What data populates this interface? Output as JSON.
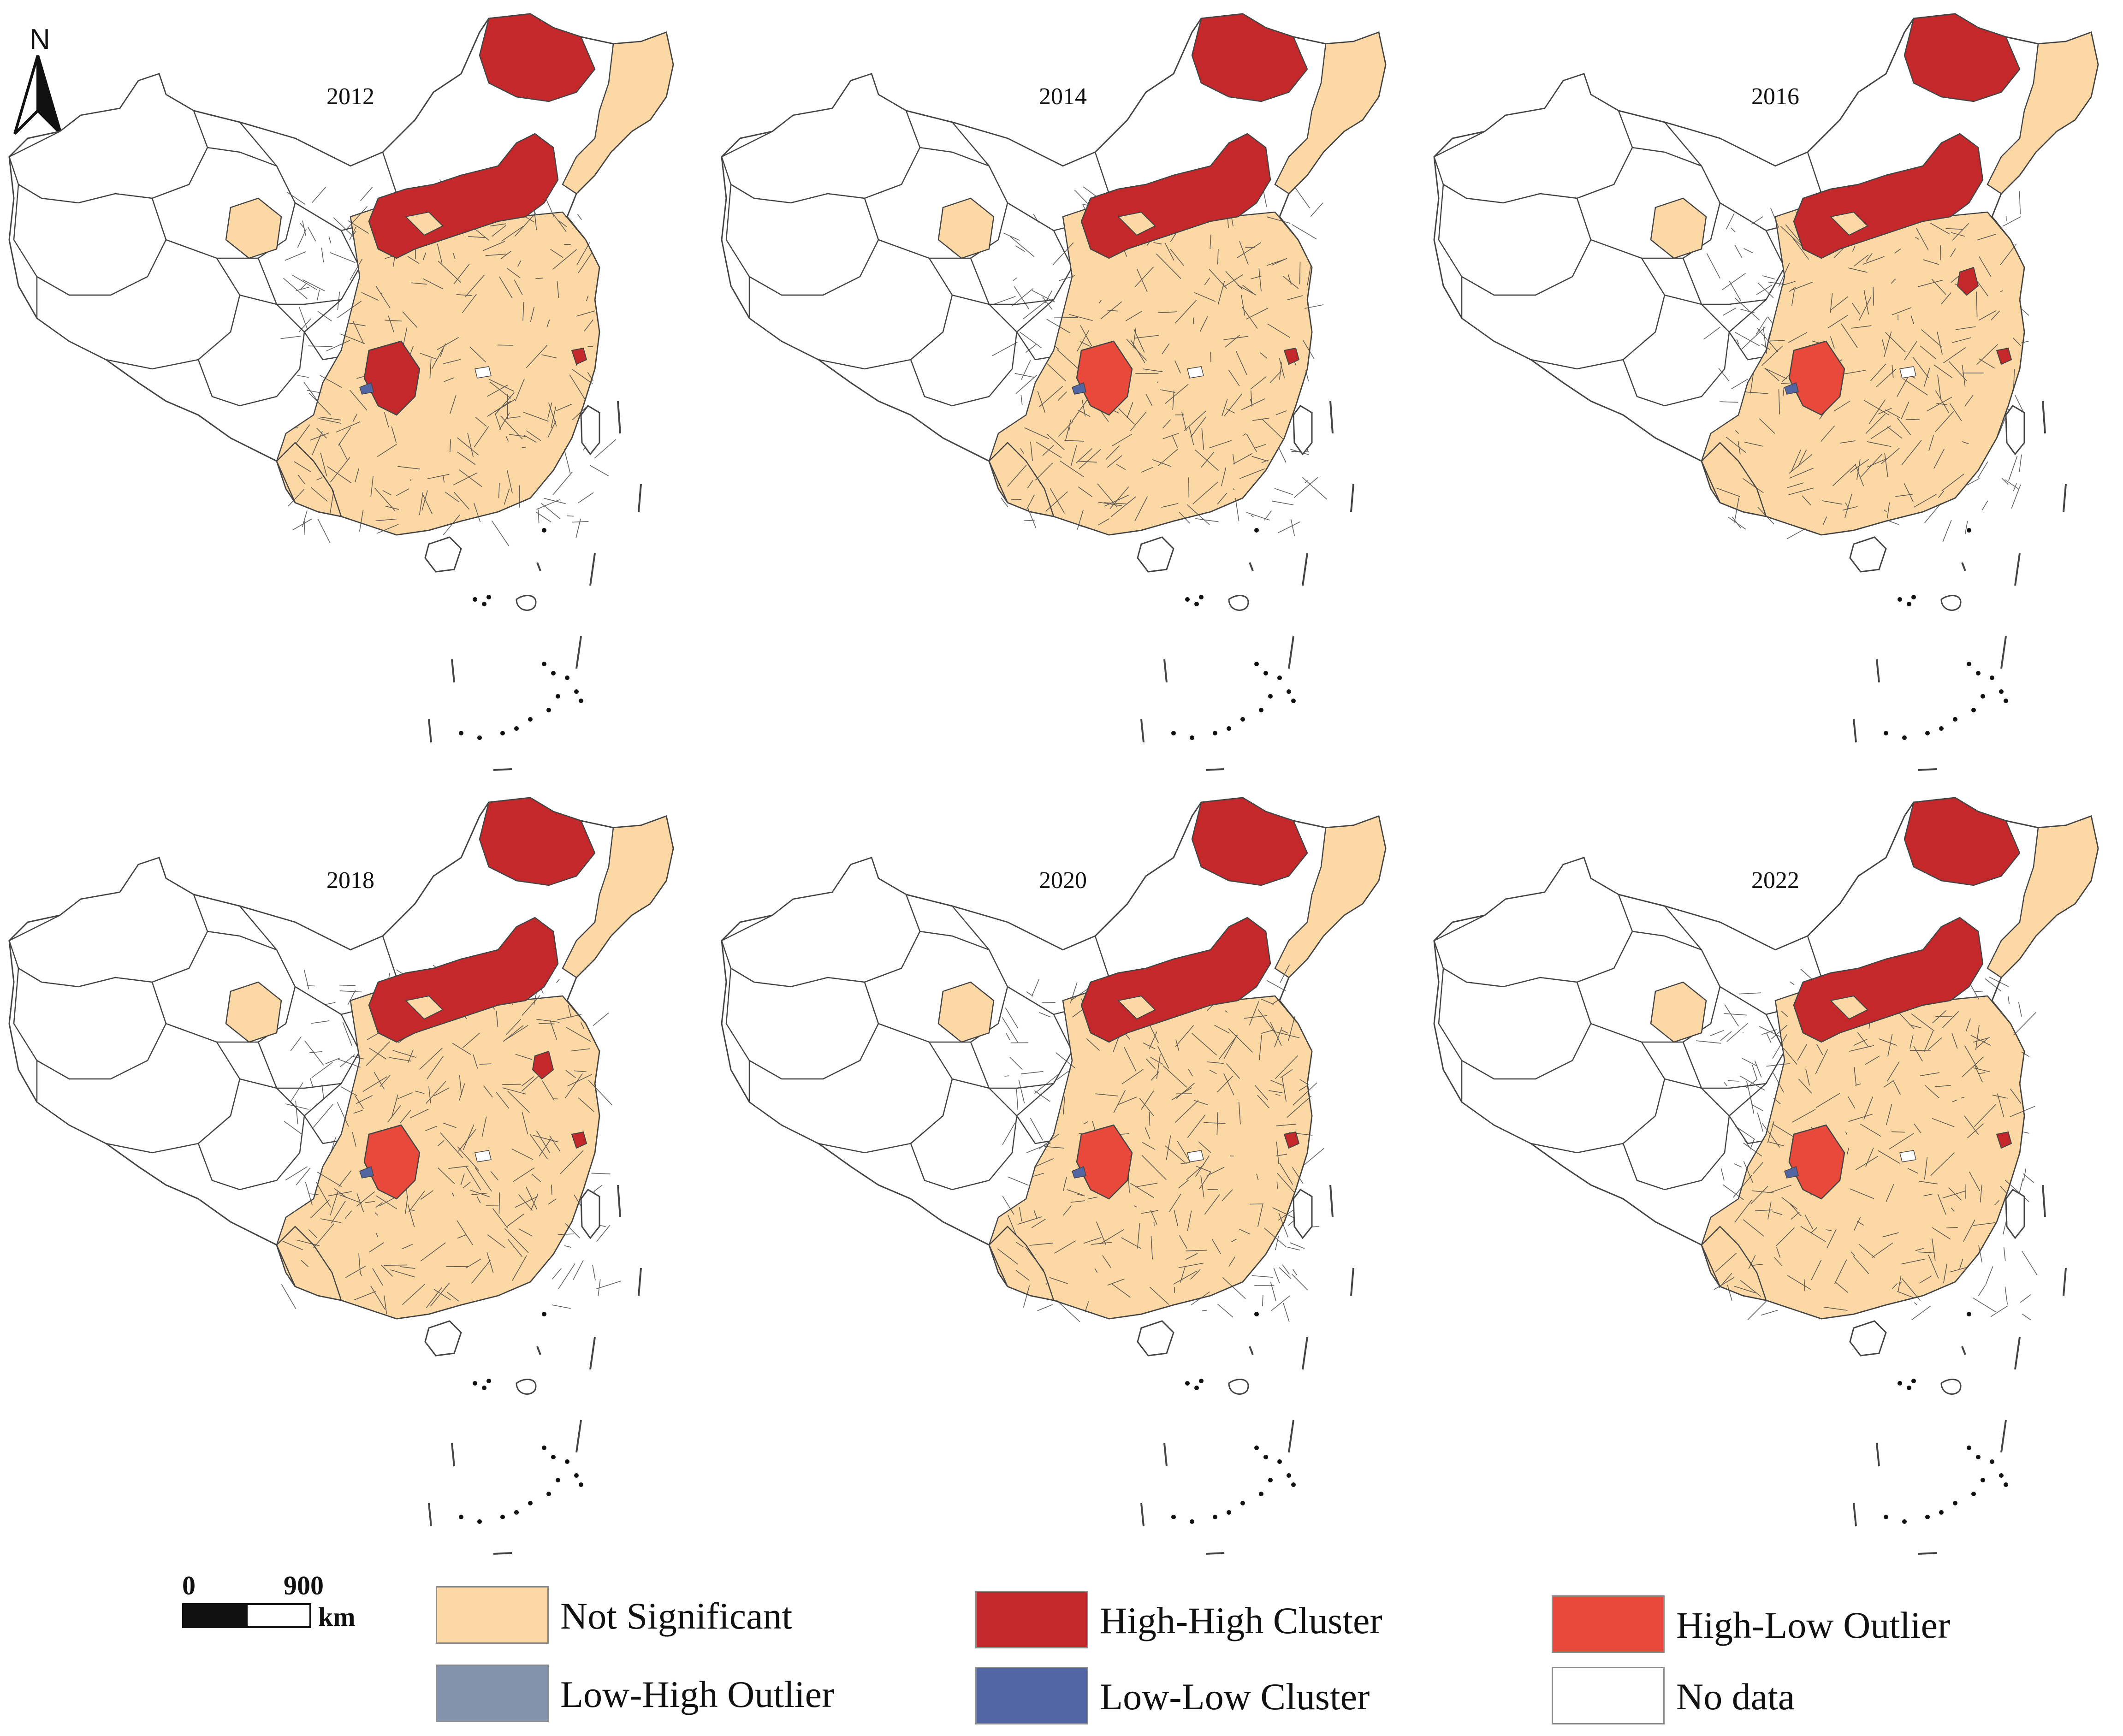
{
  "north_label": "N",
  "panels": [
    {
      "year": "2012"
    },
    {
      "year": "2014"
    },
    {
      "year": "2016"
    },
    {
      "year": "2018"
    },
    {
      "year": "2020"
    },
    {
      "year": "2022"
    }
  ],
  "scale": {
    "start": "0",
    "end": "900",
    "unit": "km"
  },
  "legend": [
    {
      "label": "Not Significant",
      "color": "#fcd8a4"
    },
    {
      "label": "High-High Cluster",
      "color": "#c4282a"
    },
    {
      "label": "High-Low Outlier",
      "color": "#e8493a"
    },
    {
      "label": "Low-High Outlier",
      "color": "#8393ab"
    },
    {
      "label": "Low-Low Cluster",
      "color": "#5265a3"
    },
    {
      "label": "No data",
      "color": "#ffffff"
    }
  ],
  "colors": {
    "not_significant": "#fcd8a4",
    "high_high": "#c4282a",
    "high_low": "#e8493a",
    "low_high": "#8393ab",
    "low_low": "#5265a3",
    "no_data": "#ffffff",
    "outline": "#444444"
  }
}
